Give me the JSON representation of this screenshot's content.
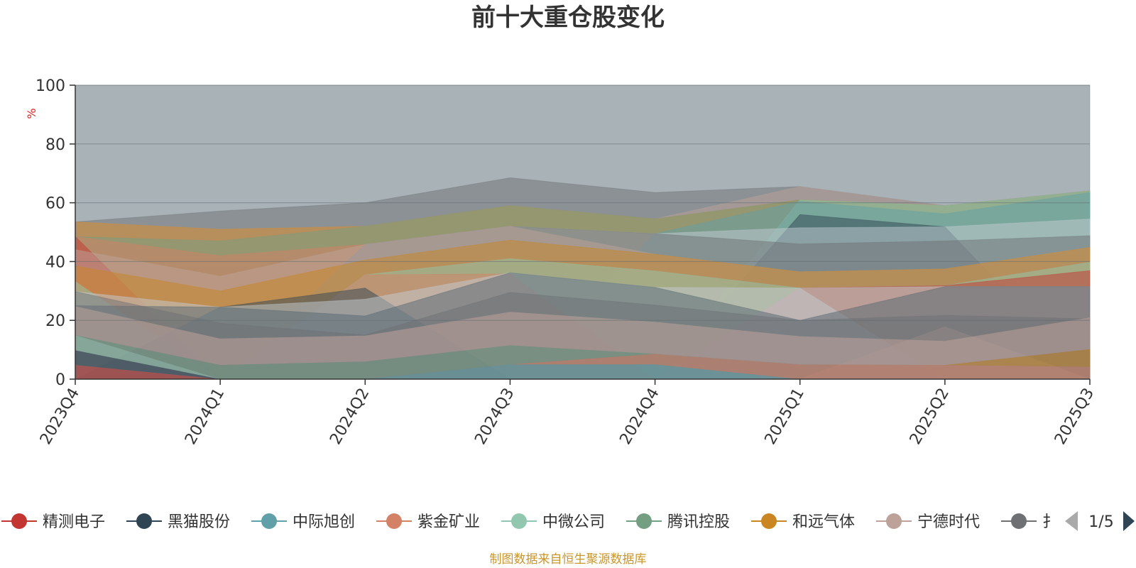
{
  "chart_data": {
    "type": "area",
    "stacked": true,
    "title": "前十大重仓股变化",
    "ylabel": "%",
    "ylim": [
      0,
      100
    ],
    "yticks": [
      0,
      20,
      40,
      60,
      80,
      100
    ],
    "grid": true,
    "categories": [
      "2023Q4",
      "2024Q1",
      "2024Q2",
      "2024Q3",
      "2024Q4",
      "2025Q1",
      "2025Q2",
      "2025Q3"
    ],
    "series": [
      {
        "name": "精测电子",
        "color": "#c23531",
        "values": [
          4.8,
          0,
          0,
          0,
          0,
          0,
          0,
          0
        ]
      },
      {
        "name": "黑猫股份",
        "color": "#2f4554",
        "values": [
          5.0,
          0,
          0,
          0,
          0,
          0,
          0,
          0
        ]
      },
      {
        "name": "中际旭创",
        "color": "#61a0a8",
        "values": [
          0,
          0,
          0,
          5.0,
          5.0,
          0,
          0,
          0
        ]
      },
      {
        "name": "紫金矿业",
        "color": "#d48265",
        "values": [
          0,
          0,
          0,
          0,
          3.6,
          5.0,
          4.8,
          4.2
        ]
      },
      {
        "name": "中微公司",
        "color": "#91c7ae",
        "values": [
          5.2,
          0,
          0,
          0,
          0,
          0,
          0,
          0
        ]
      },
      {
        "name": "腾讯控股",
        "color": "#749f83",
        "values": [
          0,
          4.8,
          6.0,
          6.5,
          0,
          0,
          0,
          0
        ]
      },
      {
        "name": "和远气体",
        "color": "#ca8622",
        "values": [
          0,
          0,
          0,
          0,
          0,
          0,
          0,
          6.0
        ]
      },
      {
        "name": "宁德时代",
        "color": "#bda29a",
        "values": [
          9.8,
          9.0,
          8.8,
          11.4,
          10.9,
          9.6,
          8.2,
          10.8
        ]
      }
    ],
    "legend": {
      "position": "bottom",
      "visible_items": [
        "精测电子",
        "黑猫股份",
        "中际旭创",
        "紫金矿业",
        "中微公司",
        "腾讯控股",
        "和远气体",
        "宁德时代",
        "扌"
      ],
      "page_indicator": "1/5"
    }
  },
  "background_layers": [
    {
      "color": "#6e7074",
      "top": [
        29.8,
        19.0,
        15.0,
        29.5,
        25.2,
        20.0,
        21.7,
        20.5
      ]
    },
    {
      "color": "#bda29a",
      "top": [
        0,
        0,
        0,
        0,
        0,
        0,
        17.8,
        0
      ]
    },
    {
      "color": "#546570",
      "top": [
        25.0,
        24.5,
        21.5,
        36.2,
        31.2,
        20.0,
        31.5,
        31.5
      ]
    },
    {
      "color": "#c4ccd3",
      "top": [
        0,
        0,
        0,
        0,
        0,
        31.0,
        0,
        0
      ]
    },
    {
      "color": "#c4ccd3",
      "top": [
        29.8,
        24.5,
        27.2,
        36.2,
        31.2,
        31.0,
        31.5,
        31.5
      ]
    },
    {
      "color": "#c23531",
      "top": [
        0,
        0,
        0,
        0,
        0,
        31.0,
        31.8,
        36.9
      ]
    },
    {
      "color": "#2f4554",
      "top": [
        0,
        24.5,
        31.0,
        0,
        0,
        0,
        0,
        0
      ]
    },
    {
      "color": "#d48265",
      "top": [
        0,
        0,
        35.5,
        35.8,
        0,
        0,
        0,
        0
      ]
    },
    {
      "color": "#91c7ae",
      "top": [
        33.2,
        0,
        35.5,
        41.0,
        36.8,
        31.0,
        31.8,
        39.8
      ]
    },
    {
      "color": "#ca8622",
      "top": [
        38.5,
        30.0,
        40.5,
        47.3,
        42.5,
        36.5,
        37.5,
        44.8
      ]
    },
    {
      "color": "#bda29a",
      "top": [
        44.0,
        35.0,
        45.8,
        52.0,
        42.5,
        36.5,
        37.5,
        44.8
      ]
    },
    {
      "color": "#6e7074",
      "top": [
        0,
        0,
        45.8,
        52.0,
        49.5,
        46.0,
        47.0,
        48.8
      ]
    },
    {
      "color": "#c4ccd3",
      "top": [
        0,
        0,
        45.8,
        52.0,
        49.5,
        51.5,
        51.8,
        54.5
      ]
    },
    {
      "color": "#2f4554",
      "top": [
        0,
        0,
        0,
        0,
        0,
        56.0,
        51.8,
        0
      ]
    },
    {
      "color": "#c23531",
      "top": [
        48.5,
        0,
        0,
        0,
        0,
        0,
        0,
        0
      ]
    },
    {
      "color": "#d48265",
      "top": [
        48.5,
        42.0,
        45.8,
        0,
        0,
        0,
        0,
        0
      ]
    },
    {
      "color": "#61a0a8",
      "top": [
        0,
        0,
        0,
        0,
        49.5,
        60.5,
        56.2,
        63.5
      ]
    },
    {
      "color": "#91c7ae",
      "top": [
        0,
        0,
        0,
        0,
        0,
        61.0,
        59.0,
        64.0
      ]
    },
    {
      "color": "#749f83",
      "top": [
        48.5,
        47.0,
        52.0,
        59.0,
        54.5,
        61.0,
        59.0,
        64.0
      ]
    },
    {
      "color": "#ca8622",
      "top": [
        53.5,
        51.0,
        52.0,
        59.0,
        54.5,
        61.0,
        59.0,
        64.0
      ]
    },
    {
      "color": "#bda29a",
      "top": [
        53.5,
        51.0,
        52.0,
        59.0,
        54.5,
        65.5,
        59.0,
        64.0
      ]
    },
    {
      "color": "#6e7074",
      "top": [
        53.5,
        57.2,
        60.0,
        68.5,
        63.5,
        65.5,
        59.0,
        64.0
      ]
    },
    {
      "color": "#546570",
      "top": [
        100,
        100,
        100,
        100,
        100,
        100,
        100,
        100
      ]
    }
  ],
  "footer": {
    "source_text": "制图数据来自恒生聚源数据库"
  }
}
